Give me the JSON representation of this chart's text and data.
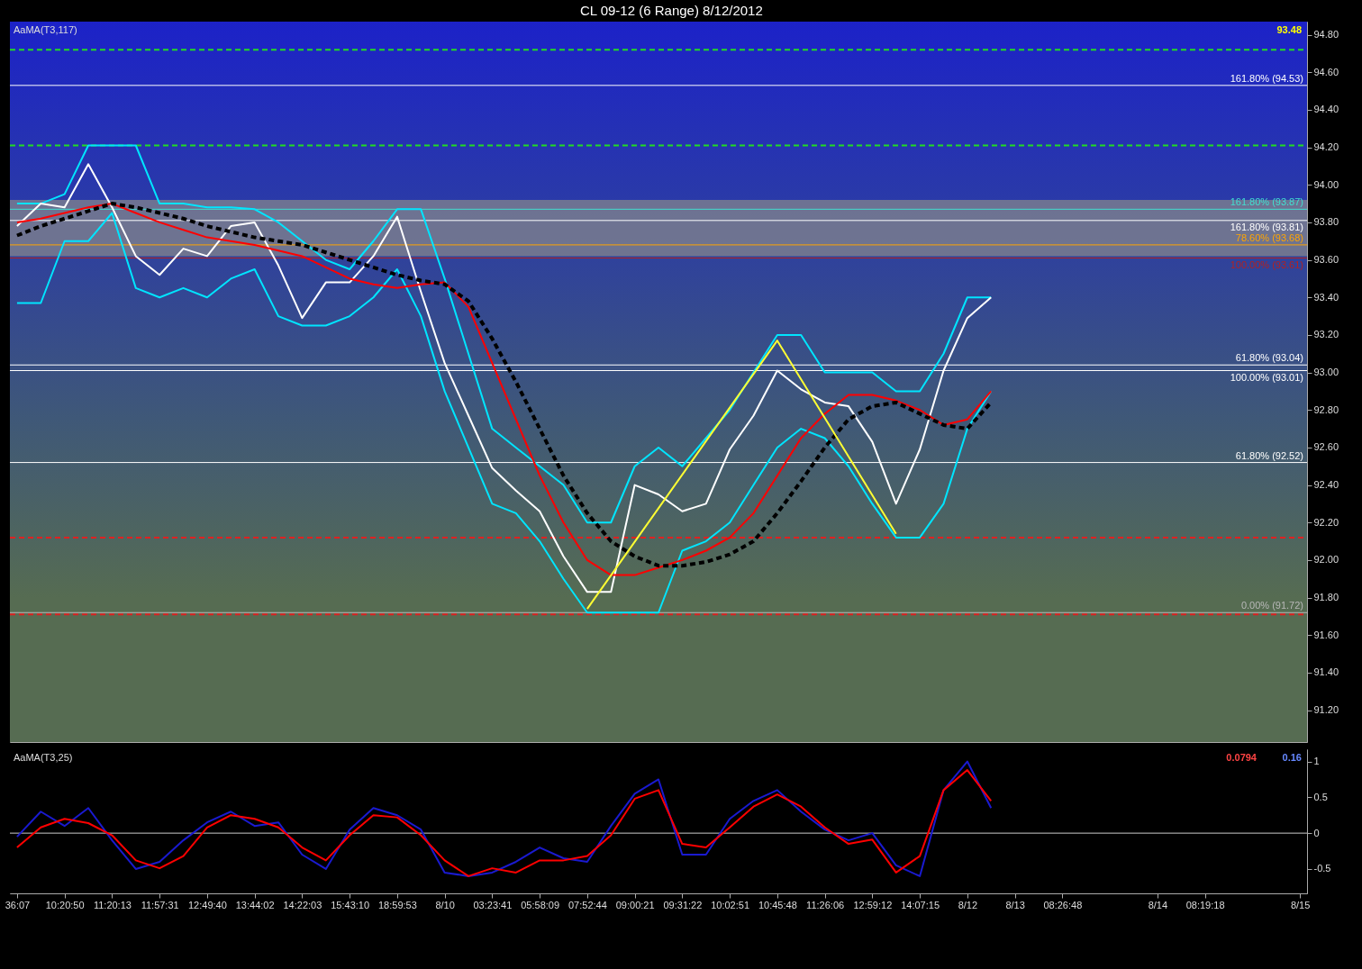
{
  "chart_data": [
    {
      "type": "line",
      "title": "CL 09-12 (6 Range)  8/12/2012",
      "tick_labels": "y",
      "annotations": [
        "AaMA(T3,117)",
        "93.48"
      ],
      "categories": [
        null,
        null,
        null,
        null,
        null,
        null,
        null,
        null,
        null,
        null,
        null,
        null,
        null,
        null,
        null,
        null,
        null,
        null,
        null,
        null,
        null,
        null,
        null,
        null,
        null,
        null,
        null,
        null,
        null,
        null,
        null,
        null,
        null,
        null,
        null,
        null,
        null,
        null,
        null,
        null,
        null,
        null,
        null,
        null,
        null,
        null,
        null,
        null,
        null,
        null,
        null,
        null,
        null,
        null,
        null
      ],
      "series": [
        {
          "color": "#00e5ff",
          "values": [
            93.9,
            93.9,
            93.95,
            94.21,
            94.21,
            94.21,
            93.9,
            93.9,
            93.88,
            93.88,
            93.87,
            93.8,
            93.7,
            93.6,
            93.55,
            93.7,
            93.87,
            93.87,
            93.5,
            93.1,
            92.7,
            92.6,
            92.5,
            92.4,
            92.2,
            92.2,
            92.5,
            92.6,
            92.5,
            92.65,
            92.8,
            93.0,
            93.2,
            93.2,
            93.0,
            93.0,
            93.0,
            92.9,
            92.9,
            93.1,
            93.4,
            93.4,
            null,
            null,
            null,
            null,
            null,
            null,
            null,
            null,
            null,
            null,
            null,
            null,
            null
          ]
        },
        {
          "color": "#00e5ff",
          "values": [
            93.37,
            93.37,
            93.7,
            93.7,
            93.85,
            93.45,
            93.4,
            93.45,
            93.4,
            93.5,
            93.55,
            93.3,
            93.25,
            93.25,
            93.3,
            93.4,
            93.55,
            93.3,
            92.9,
            92.6,
            92.3,
            92.25,
            92.1,
            91.9,
            91.72,
            91.72,
            91.72,
            91.72,
            92.05,
            92.1,
            92.2,
            92.4,
            92.6,
            92.7,
            92.65,
            92.5,
            92.3,
            92.12,
            92.12,
            92.3,
            92.7,
            92.9,
            null,
            null,
            null,
            null,
            null,
            null,
            null,
            null,
            null,
            null,
            null,
            null,
            null
          ]
        },
        {
          "color": "#ffffff",
          "values": [
            93.78,
            93.9,
            93.88,
            94.11,
            93.88,
            93.62,
            93.52,
            93.66,
            93.62,
            93.78,
            93.8,
            93.57,
            93.29,
            93.48,
            93.48,
            93.62,
            93.83,
            93.43,
            93.05,
            92.77,
            92.49,
            92.37,
            92.26,
            92.02,
            91.83,
            91.83,
            92.4,
            92.35,
            92.26,
            92.3,
            92.59,
            92.77,
            93.01,
            92.91,
            92.84,
            92.82,
            92.63,
            92.3,
            92.59,
            93.01,
            93.29,
            93.4,
            null,
            null,
            null,
            null,
            null,
            null,
            null,
            null,
            null,
            null,
            null,
            null,
            null
          ]
        },
        {
          "color": "#ff0000",
          "values": [
            93.8,
            93.82,
            93.85,
            93.88,
            93.9,
            93.85,
            93.8,
            93.76,
            93.72,
            93.7,
            93.68,
            93.65,
            93.62,
            93.56,
            93.5,
            93.47,
            93.45,
            93.47,
            93.48,
            93.35,
            93.05,
            92.75,
            92.45,
            92.2,
            92.0,
            91.92,
            91.92,
            91.96,
            92.0,
            92.05,
            92.12,
            92.25,
            92.45,
            92.65,
            92.78,
            92.88,
            92.88,
            92.85,
            92.8,
            92.72,
            92.75,
            92.9,
            null,
            null,
            null,
            null,
            null,
            null,
            null,
            null,
            null,
            null,
            null,
            null,
            null
          ]
        },
        {
          "color": "#000000",
          "line_style": "dashed",
          "values": [
            93.73,
            93.78,
            93.82,
            93.86,
            93.9,
            93.88,
            93.85,
            93.82,
            93.78,
            93.75,
            93.72,
            93.7,
            93.68,
            93.64,
            93.6,
            93.56,
            93.52,
            93.49,
            93.47,
            93.38,
            93.18,
            92.95,
            92.7,
            92.45,
            92.25,
            92.1,
            92.02,
            91.97,
            91.97,
            91.99,
            92.03,
            92.1,
            92.25,
            92.42,
            92.6,
            92.75,
            92.82,
            92.84,
            92.78,
            92.72,
            92.7,
            92.84,
            null,
            null,
            null,
            null,
            null,
            null,
            null,
            null,
            null,
            null,
            null,
            null,
            null
          ]
        },
        {
          "color": "#ffff33",
          "values": [
            null,
            null,
            null,
            null,
            null,
            null,
            null,
            null,
            null,
            null,
            null,
            null,
            null,
            null,
            null,
            null,
            null,
            null,
            null,
            null,
            null,
            null,
            null,
            null,
            91.74,
            null,
            null,
            null,
            null,
            null,
            null,
            null,
            93.17,
            null,
            null,
            null,
            null,
            92.14,
            null,
            null,
            null,
            null,
            null,
            null,
            null,
            null,
            null,
            null,
            null,
            null,
            null,
            null,
            null,
            null,
            null
          ]
        }
      ],
      "ylim": [
        91.03,
        94.87
      ],
      "yticks": [
        {
          "value": 91.2,
          "label": "91.20"
        },
        {
          "value": 91.4,
          "label": "91.40"
        },
        {
          "value": 91.6,
          "label": "91.60"
        },
        {
          "value": 91.8,
          "label": "91.80"
        },
        {
          "value": 92,
          "label": "92.00"
        },
        {
          "value": 92.2,
          "label": "92.20"
        },
        {
          "value": 92.4,
          "label": "92.40"
        },
        {
          "value": 92.6,
          "label": "92.60"
        },
        {
          "value": 92.8,
          "label": "92.80"
        },
        {
          "value": 93,
          "label": "93.00"
        },
        {
          "value": 93.2,
          "label": "93.20"
        },
        {
          "value": 93.4,
          "label": "93.40"
        },
        {
          "value": 93.6,
          "label": "93.60"
        },
        {
          "value": 93.8,
          "label": "93.80"
        },
        {
          "value": 94,
          "label": "94.00"
        },
        {
          "value": 94.2,
          "label": "94.20"
        },
        {
          "value": 94.4,
          "label": "94.40"
        },
        {
          "value": 94.6,
          "label": "94.60"
        },
        {
          "value": 94.8,
          "label": "94.80"
        }
      ],
      "bands": [
        {
          "axis": "y",
          "from": 93.62,
          "to": 93.92,
          "color": "#8a8a8a"
        }
      ],
      "ref_lines": [
        {
          "axis": "y",
          "value": 94.72,
          "color": "#22dd22",
          "line_style": "dashed"
        },
        {
          "axis": "y",
          "value": 94.21,
          "color": "#22dd22",
          "line_style": "dashed"
        },
        {
          "axis": "y",
          "value": 94.53,
          "label": "161.80% (94.53)",
          "color": "#ffffff"
        },
        {
          "axis": "y",
          "value": 93.87,
          "label": "161.80% (93.87)",
          "color": "#40e0d0"
        },
        {
          "axis": "y",
          "value": 93.81,
          "label": "161.80% (93.81)",
          "color": "#ffffff"
        },
        {
          "axis": "y",
          "value": 93.68,
          "label": "78.60% (93.68)",
          "color": "#ffa500"
        },
        {
          "axis": "y",
          "value": 93.61,
          "label": "100.00% (93.61)",
          "color": "#b22222"
        },
        {
          "axis": "y",
          "value": 93.04,
          "label": "61.80% (93.04)",
          "color": "#ffffff"
        },
        {
          "axis": "y",
          "value": 93.01,
          "label": "100.00% (93.01)",
          "color": "#ffffff"
        },
        {
          "axis": "y",
          "value": 92.52,
          "label": "61.80% (92.52)",
          "color": "#ffffff"
        },
        {
          "axis": "y",
          "value": 92.12,
          "color": "#dd2222",
          "line_style": "dashed"
        },
        {
          "axis": "y",
          "value": 91.72,
          "label": "0.00% (91.72)",
          "color": "#b8b8b8"
        },
        {
          "axis": "y",
          "value": 91.71,
          "color": "#dd2222",
          "line_style": "dashed"
        }
      ]
    },
    {
      "type": "line",
      "annotations": [
        "AaMA(T3,25)",
        "0.16",
        "0.0794"
      ],
      "categories": [
        "36:07",
        null,
        "10:20:50",
        null,
        "11:20:13",
        null,
        "11:57:31",
        null,
        "12:49:40",
        null,
        "13:44:02",
        null,
        "14:22:03",
        null,
        "15:43:10",
        null,
        "18:59:53",
        null,
        "8/10",
        null,
        "03:23:41",
        null,
        "05:58:09",
        null,
        "07:52:44",
        null,
        "09:00:21",
        null,
        "09:31:22",
        null,
        "10:02:51",
        null,
        "10:45:48",
        null,
        "11:26:06",
        null,
        "12:59:12",
        null,
        "14:07:15",
        null,
        "8/12",
        null,
        "8/13",
        null,
        "08:26:48",
        null,
        null,
        null,
        "8/14",
        null,
        "08:19:18",
        null,
        null,
        null,
        "8/15"
      ],
      "series": [
        {
          "color": "#1a1ad0",
          "values": [
            -0.05,
            0.3,
            0.1,
            0.35,
            -0.1,
            -0.5,
            -0.4,
            -0.1,
            0.15,
            0.3,
            0.1,
            0.15,
            -0.3,
            -0.5,
            0.05,
            0.35,
            0.25,
            0.05,
            -0.55,
            -0.6,
            -0.55,
            -0.4,
            -0.2,
            -0.35,
            -0.4,
            0.1,
            0.55,
            0.75,
            -0.3,
            -0.3,
            0.2,
            0.45,
            0.6,
            0.3,
            0.05,
            -0.1,
            0.0,
            -0.45,
            -0.6,
            0.6,
            1.0,
            0.35,
            null,
            null,
            null,
            null,
            null,
            null,
            null,
            null,
            null,
            null,
            null,
            null,
            null
          ]
        },
        {
          "color": "#ff0000",
          "values": [
            -0.2,
            0.08,
            0.2,
            0.14,
            -0.03,
            -0.38,
            -0.49,
            -0.32,
            0.08,
            0.25,
            0.2,
            0.08,
            -0.2,
            -0.38,
            -0.03,
            0.25,
            0.22,
            -0.03,
            -0.38,
            -0.6,
            -0.49,
            -0.55,
            -0.38,
            -0.38,
            -0.32,
            -0.03,
            0.48,
            0.6,
            -0.15,
            -0.2,
            0.08,
            0.37,
            0.54,
            0.37,
            0.08,
            -0.15,
            -0.09,
            -0.55,
            -0.32,
            0.6,
            0.88,
            0.45,
            null,
            null,
            null,
            null,
            null,
            null,
            null,
            null,
            null,
            null,
            null,
            null,
            null
          ]
        }
      ],
      "ylim": [
        -0.84,
        1.17
      ],
      "yticks": [
        -0.5,
        0,
        0.5,
        1
      ],
      "ref_lines": [
        {
          "axis": "y",
          "value": 0,
          "color": "#cccccc"
        }
      ]
    }
  ]
}
